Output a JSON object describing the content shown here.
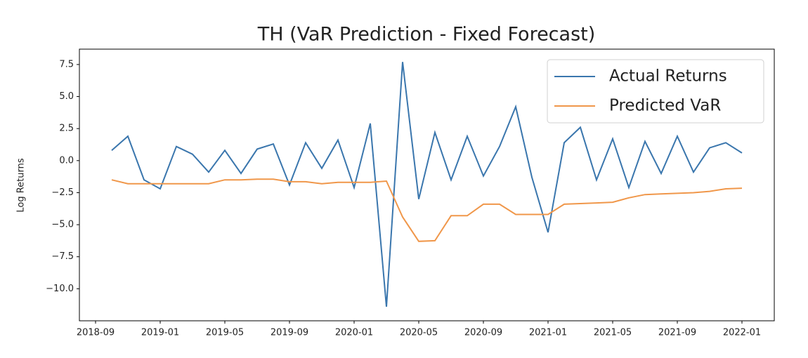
{
  "chart_data": {
    "type": "line",
    "title": "TH (VaR Prediction - Fixed Forecast)",
    "y_label": "Log Returns",
    "x": [
      "2018-10",
      "2018-11",
      "2018-12",
      "2019-01",
      "2019-02",
      "2019-03",
      "2019-04",
      "2019-05",
      "2019-06",
      "2019-07",
      "2019-08",
      "2019-09",
      "2019-10",
      "2019-11",
      "2019-12",
      "2020-01",
      "2020-02",
      "2020-03",
      "2020-04",
      "2020-05",
      "2020-06",
      "2020-07",
      "2020-08",
      "2020-09",
      "2020-10",
      "2020-11",
      "2020-12",
      "2021-01",
      "2021-02",
      "2021-03",
      "2021-04",
      "2021-05",
      "2021-06",
      "2021-07",
      "2021-08",
      "2021-09",
      "2021-10",
      "2021-11",
      "2021-12",
      "2022-01"
    ],
    "series": [
      {
        "name": "Actual Returns",
        "color": "#3a76ad",
        "values": [
          0.8,
          1.9,
          -1.5,
          -2.2,
          1.1,
          0.5,
          -0.9,
          0.8,
          -1.0,
          0.9,
          1.3,
          -1.9,
          1.4,
          -0.6,
          1.6,
          -2.1,
          2.9,
          -11.4,
          7.7,
          -3.0,
          2.2,
          -1.5,
          1.9,
          -1.2,
          1.1,
          4.2,
          -1.3,
          -5.6,
          1.4,
          2.6,
          -1.5,
          1.7,
          -2.1,
          1.5,
          -1.0,
          1.9,
          -0.9,
          1.0,
          1.4,
          0.6
        ]
      },
      {
        "name": "Predicted VaR",
        "color": "#f0974a",
        "values": [
          -1.5,
          -1.8,
          -1.8,
          -1.8,
          -1.8,
          -1.8,
          -1.8,
          -1.5,
          -1.5,
          -1.45,
          -1.45,
          -1.65,
          -1.65,
          -1.8,
          -1.7,
          -1.7,
          -1.7,
          -1.6,
          -4.4,
          -6.3,
          -6.25,
          -4.3,
          -4.3,
          -3.4,
          -3.4,
          -4.2,
          -4.2,
          -4.2,
          -3.4,
          -3.35,
          -3.3,
          -3.25,
          -2.9,
          -2.65,
          -2.6,
          -2.55,
          -2.5,
          -2.4,
          -2.2,
          -2.15
        ]
      }
    ],
    "xlim": [
      "2018-08",
      "2022-03"
    ],
    "xticks": [
      "2018-09",
      "2019-01",
      "2019-05",
      "2019-09",
      "2020-01",
      "2020-05",
      "2020-09",
      "2021-01",
      "2021-05",
      "2021-09",
      "2022-01"
    ],
    "ylim": [
      -12.5,
      8.7
    ],
    "yticks": [
      {
        "value": -10,
        "label": "−10.0"
      },
      {
        "value": -7.5,
        "label": "−7.5"
      },
      {
        "value": -5,
        "label": "−5.0"
      },
      {
        "value": -2.5,
        "label": "−2.5"
      },
      {
        "value": 0,
        "label": "0.0"
      },
      {
        "value": 2.5,
        "label": "2.5"
      },
      {
        "value": 5,
        "label": "5.0"
      },
      {
        "value": 7.5,
        "label": "7.5"
      }
    ],
    "grid": false,
    "legend": "upper-right"
  }
}
